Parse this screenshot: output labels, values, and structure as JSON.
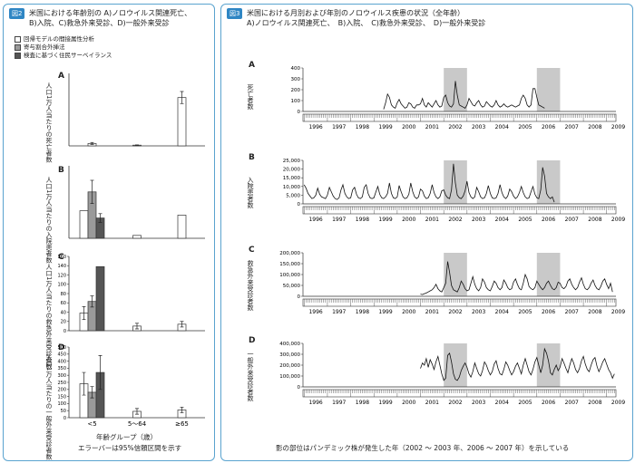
{
  "figure2": {
    "badge": "図2",
    "title_line1": "米国における年齢別の A)ノロウイルス関連死亡、",
    "title_line2": "B)入院、C)救急外来受診、D)一般外来受診",
    "legend": [
      {
        "label": "回帰モデルの間接属性分析",
        "color": "#ffffff"
      },
      {
        "label": "寄与割合外挿法",
        "color": "#9a9a9a"
      },
      {
        "label": "検査に基づく住民サーベイランス",
        "color": "#555555"
      }
    ],
    "xlabel": "年齢グループ（歳）",
    "footnote": "エラーバーは95%信頼区間を示す"
  },
  "figure3": {
    "badge": "図3",
    "title_line1": "米国における月別および年別のノロウイルス疾患の状況（全年齢）",
    "title_line2": "A)ノロウイルス関連死亡、　B)入院、　C)救急外来受診、　D)一般外来受診",
    "footnote": "影の部位はパンデミック株が発生した年（2002 ～ 2003 年、2006 ～ 2007 年）を示している"
  },
  "chart_data": [
    {
      "type": "bar",
      "panel": "A",
      "ylabel": "人口1万人当たりの死亡者数",
      "categories": [
        "<5",
        "5～64",
        "≥65"
      ],
      "series": [
        {
          "values": [
            0.01,
            0.003,
            0.2
          ],
          "err": [
            0.004,
            0.001,
            0.025
          ]
        }
      ],
      "ylim": [
        0,
        0.3
      ]
    },
    {
      "type": "bar",
      "panel": "B",
      "ylabel": "人口1万人当たりの入院患者数",
      "categories": [
        "<5",
        "5～64",
        "≥65"
      ],
      "series": [
        {
          "values": [
            9.5,
            1,
            8
          ]
        },
        {
          "values": [
            16,
            null,
            null
          ],
          "err": [
            4,
            null,
            null
          ]
        },
        {
          "values": [
            7,
            null,
            null
          ],
          "err": [
            1.5,
            null,
            null
          ]
        }
      ],
      "ylim": [
        0,
        25
      ]
    },
    {
      "type": "bar",
      "panel": "C",
      "ylabel": "人口1万人当たりの救急外来受診者数",
      "categories": [
        "<5",
        "5～64",
        "≥65"
      ],
      "yticks": [
        0,
        20,
        40,
        60,
        80,
        100,
        120,
        140,
        160
      ],
      "series": [
        {
          "values": [
            38,
            10,
            14
          ],
          "err": [
            14,
            6,
            6
          ]
        },
        {
          "values": [
            63,
            null,
            null
          ],
          "err": [
            12,
            null,
            null
          ]
        },
        {
          "values": [
            138,
            null,
            null
          ]
        }
      ],
      "ylim": [
        0,
        160
      ]
    },
    {
      "type": "bar",
      "panel": "D",
      "ylabel": "人口1万人当たりの一般外来受診者数",
      "categories": [
        "<5",
        "5～64",
        "≥65"
      ],
      "yticks": [
        0,
        50,
        100,
        150,
        200,
        250,
        300,
        350,
        400,
        450,
        500
      ],
      "series": [
        {
          "values": [
            240,
            45,
            55
          ],
          "err": [
            80,
            20,
            20
          ]
        },
        {
          "values": [
            180,
            null,
            null
          ],
          "err": [
            40,
            null,
            null
          ]
        },
        {
          "values": [
            320,
            null,
            null
          ],
          "err": [
            120,
            null,
            null
          ]
        }
      ],
      "ylim": [
        0,
        500
      ]
    },
    {
      "type": "line",
      "panel": "A",
      "ylabel": "死亡者数",
      "yticks": [
        0,
        100,
        200,
        300,
        400
      ],
      "ylim": [
        0,
        400
      ],
      "start": "1999-06",
      "shaded": [
        [
          "2002-01",
          "2002-12"
        ],
        [
          "2006-01",
          "2006-12"
        ]
      ],
      "years": [
        "1996",
        "1997",
        "1998",
        "1999",
        "2000",
        "2001",
        "2002",
        "2003",
        "2004",
        "2005",
        "2006",
        "2007",
        "2008",
        "2009"
      ],
      "values": [
        20,
        80,
        160,
        130,
        60,
        40,
        30,
        80,
        110,
        70,
        50,
        30,
        40,
        80,
        70,
        40,
        30,
        60,
        60,
        70,
        120,
        60,
        40,
        80,
        60,
        40,
        70,
        100,
        60,
        40,
        50,
        130,
        150,
        80,
        50,
        40,
        70,
        280,
        150,
        60,
        50,
        40,
        30,
        60,
        120,
        90,
        60,
        50,
        80,
        100,
        60,
        40,
        50,
        90,
        70,
        50,
        40,
        60,
        100,
        60,
        40,
        50,
        70,
        50,
        40,
        50,
        60,
        50,
        40,
        50,
        60,
        120,
        150,
        120,
        60,
        40,
        60,
        210,
        210,
        130,
        60,
        50,
        40,
        30
      ]
    },
    {
      "type": "line",
      "panel": "B",
      "ylabel": "入院患者数",
      "yticks": [
        0,
        5000,
        10000,
        15000,
        20000,
        25000
      ],
      "ylim": [
        0,
        25000
      ],
      "start": "1996-01",
      "shaded": [
        [
          "2002-01",
          "2002-12"
        ],
        [
          "2006-01",
          "2006-12"
        ]
      ],
      "years": [
        "1996",
        "1997",
        "1998",
        "1999",
        "2000",
        "2001",
        "2002",
        "2003",
        "2004",
        "2005",
        "2006",
        "2007",
        "2008",
        "2009"
      ],
      "values": [
        11000,
        9000,
        6000,
        4500,
        3000,
        3500,
        5000,
        9000,
        5500,
        4000,
        3500,
        3000,
        5000,
        9500,
        7000,
        4500,
        3000,
        2500,
        3500,
        8000,
        11000,
        6000,
        4000,
        3000,
        3500,
        8000,
        9500,
        5500,
        3500,
        3000,
        4000,
        9500,
        11000,
        6000,
        3500,
        3000,
        3500,
        7000,
        10000,
        5500,
        3500,
        3000,
        4000,
        6000,
        12000,
        6000,
        3500,
        3000,
        4000,
        10500,
        7000,
        4000,
        3000,
        3500,
        5500,
        12000,
        7000,
        4000,
        3000,
        4000,
        8500,
        7500,
        4500,
        3000,
        3500,
        6000,
        11000,
        6500,
        4000,
        3000,
        4000,
        7500,
        8000,
        5000,
        3500,
        3000,
        8000,
        23000,
        12000,
        5000,
        3500,
        3000,
        4500,
        7500,
        13000,
        6500,
        4000,
        3000,
        4000,
        9500,
        7000,
        4000,
        3000,
        3500,
        6000,
        10500,
        6000,
        3500,
        3000,
        3500,
        6000,
        11000,
        6500,
        4000,
        3000,
        4500,
        8500,
        7000,
        4500,
        3000,
        4000,
        6500,
        10000,
        6500,
        4000,
        3000,
        3500,
        7000,
        10000,
        5500,
        3500,
        3000,
        8000,
        21000,
        16000,
        6000,
        4000,
        3000,
        4000,
        1000
      ]
    },
    {
      "type": "line",
      "panel": "C",
      "ylabel": "救急外来受診者数",
      "yticks": [
        0,
        50000,
        100000,
        150000,
        200000
      ],
      "ylim": [
        0,
        200000
      ],
      "start": "2001-01",
      "shaded": [
        [
          "2002-01",
          "2002-12"
        ],
        [
          "2006-01",
          "2006-12"
        ]
      ],
      "years": [
        "1996",
        "1997",
        "1998",
        "1999",
        "2000",
        "2001",
        "2002",
        "2003",
        "2004",
        "2005",
        "2006",
        "2007",
        "2008",
        "2009"
      ],
      "values": [
        10000,
        8000,
        12000,
        15000,
        20000,
        25000,
        30000,
        40000,
        55000,
        35000,
        25000,
        20000,
        40000,
        60000,
        160000,
        110000,
        50000,
        30000,
        25000,
        20000,
        40000,
        70000,
        55000,
        35000,
        25000,
        30000,
        60000,
        90000,
        55000,
        35000,
        25000,
        40000,
        80000,
        65000,
        40000,
        30000,
        25000,
        45000,
        70000,
        60000,
        40000,
        30000,
        40000,
        75000,
        60000,
        40000,
        30000,
        35000,
        65000,
        80000,
        55000,
        35000,
        30000,
        60000,
        100000,
        80000,
        45000,
        35000,
        30000,
        40000,
        70000,
        55000,
        40000,
        30000,
        40000,
        60000,
        70000,
        50000,
        35000,
        30000,
        40000,
        65000,
        60000,
        40000,
        35000,
        45000,
        70000,
        80000,
        55000,
        40000,
        30000,
        40000,
        65000,
        85000,
        55000,
        35000,
        30000,
        40000,
        60000,
        75000,
        50000,
        35000,
        30000,
        45000,
        70000,
        80000,
        55000,
        35000,
        60000,
        20000
      ]
    },
    {
      "type": "line",
      "panel": "D",
      "ylabel": "一般外来受診者数",
      "yticks": [
        0,
        100000,
        200000,
        300000,
        400000
      ],
      "ylim": [
        0,
        400000
      ],
      "start": "2001-01",
      "shaded": [
        [
          "2002-01",
          "2002-12"
        ],
        [
          "2006-01",
          "2006-12"
        ]
      ],
      "years": [
        "1996",
        "1997",
        "1998",
        "1999",
        "2000",
        "2001",
        "2002",
        "2003",
        "2004",
        "2005",
        "2006",
        "2007",
        "2008",
        "2009"
      ],
      "values": [
        170000,
        220000,
        200000,
        260000,
        180000,
        250000,
        210000,
        160000,
        230000,
        280000,
        200000,
        120000,
        60000,
        80000,
        290000,
        310000,
        230000,
        120000,
        70000,
        60000,
        90000,
        150000,
        190000,
        220000,
        180000,
        120000,
        90000,
        140000,
        220000,
        170000,
        120000,
        100000,
        150000,
        230000,
        200000,
        150000,
        110000,
        140000,
        210000,
        240000,
        170000,
        120000,
        110000,
        160000,
        230000,
        200000,
        150000,
        110000,
        140000,
        190000,
        220000,
        170000,
        120000,
        200000,
        260000,
        200000,
        140000,
        110000,
        160000,
        230000,
        270000,
        200000,
        130000,
        200000,
        350000,
        310000,
        240000,
        130000,
        110000,
        160000,
        200000,
        150000,
        180000,
        260000,
        220000,
        170000,
        130000,
        200000,
        260000,
        220000,
        160000,
        130000,
        170000,
        240000,
        280000,
        210000,
        160000,
        140000,
        200000,
        250000,
        270000,
        190000,
        140000,
        180000,
        230000,
        260000,
        210000,
        160000,
        130000,
        80000,
        120000
      ]
    }
  ]
}
